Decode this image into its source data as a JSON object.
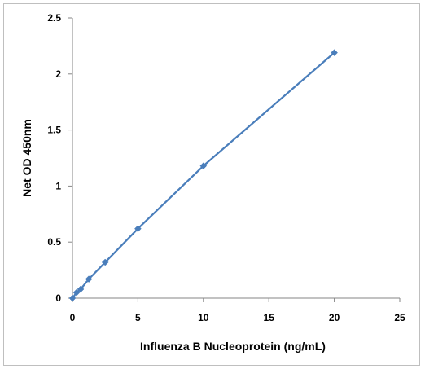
{
  "chart_data": {
    "type": "scatter",
    "title": "",
    "xlabel": "Influenza B Nucleoprotein (ng/mL)",
    "ylabel": "Net OD 450nm",
    "xlim": [
      0,
      25
    ],
    "ylim": [
      0,
      2.5
    ],
    "x_ticks": [
      "0",
      "5",
      "10",
      "15",
      "20",
      "25"
    ],
    "y_ticks": [
      "0",
      "0.5",
      "1",
      "1.5",
      "2",
      "2.5"
    ],
    "grid": "none",
    "legend": "none",
    "series": [
      {
        "x": [
          0,
          0.3125,
          0.625,
          1.25,
          2.5,
          5,
          10,
          20
        ],
        "y": [
          0.0,
          0.05,
          0.08,
          0.17,
          0.32,
          0.62,
          1.18,
          2.19
        ],
        "color": "#4a7ebb",
        "marker": "diamond",
        "line": true
      }
    ]
  }
}
